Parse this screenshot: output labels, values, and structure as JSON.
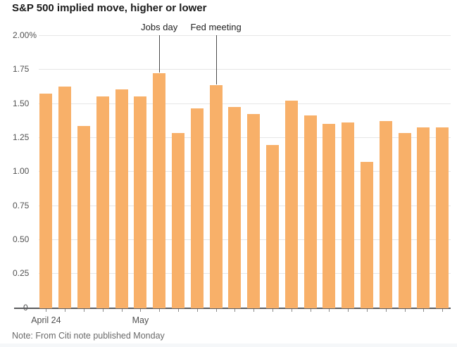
{
  "title": "S&P 500 implied move, higher or lower",
  "note": "Note: From Citi note published Monday",
  "chart_data": {
    "type": "bar",
    "title": "S&P 500 implied move, higher or lower",
    "unit": "%",
    "values": [
      1.57,
      1.62,
      1.33,
      1.55,
      1.6,
      1.55,
      1.72,
      1.28,
      1.46,
      1.63,
      1.47,
      1.42,
      1.19,
      1.52,
      1.41,
      1.35,
      1.36,
      1.07,
      1.37,
      1.28,
      1.32,
      1.32
    ],
    "bar_color": "#f8b069",
    "ylim": [
      0,
      2.0
    ],
    "yticks": [
      {
        "label": "2.00%",
        "value": 2.0
      },
      {
        "label": "1.75",
        "value": 1.75
      },
      {
        "label": "1.50",
        "value": 1.5
      },
      {
        "label": "1.25",
        "value": 1.25
      },
      {
        "label": "1.00",
        "value": 1.0
      },
      {
        "label": "0.75",
        "value": 0.75
      },
      {
        "label": "0.50",
        "value": 0.5
      },
      {
        "label": "0.25",
        "value": 0.25
      },
      {
        "label": "0",
        "value": 0
      }
    ],
    "xticks": [
      {
        "label": "April 24",
        "bar_index": 0
      },
      {
        "label": "May",
        "bar_index": 5
      }
    ],
    "annotations": [
      {
        "label": "Jobs day",
        "bar_index": 6
      },
      {
        "label": "Fed meeting",
        "bar_index": 9
      }
    ],
    "grid": true,
    "legend": "none",
    "note": "Note: From Citi note published Monday"
  }
}
